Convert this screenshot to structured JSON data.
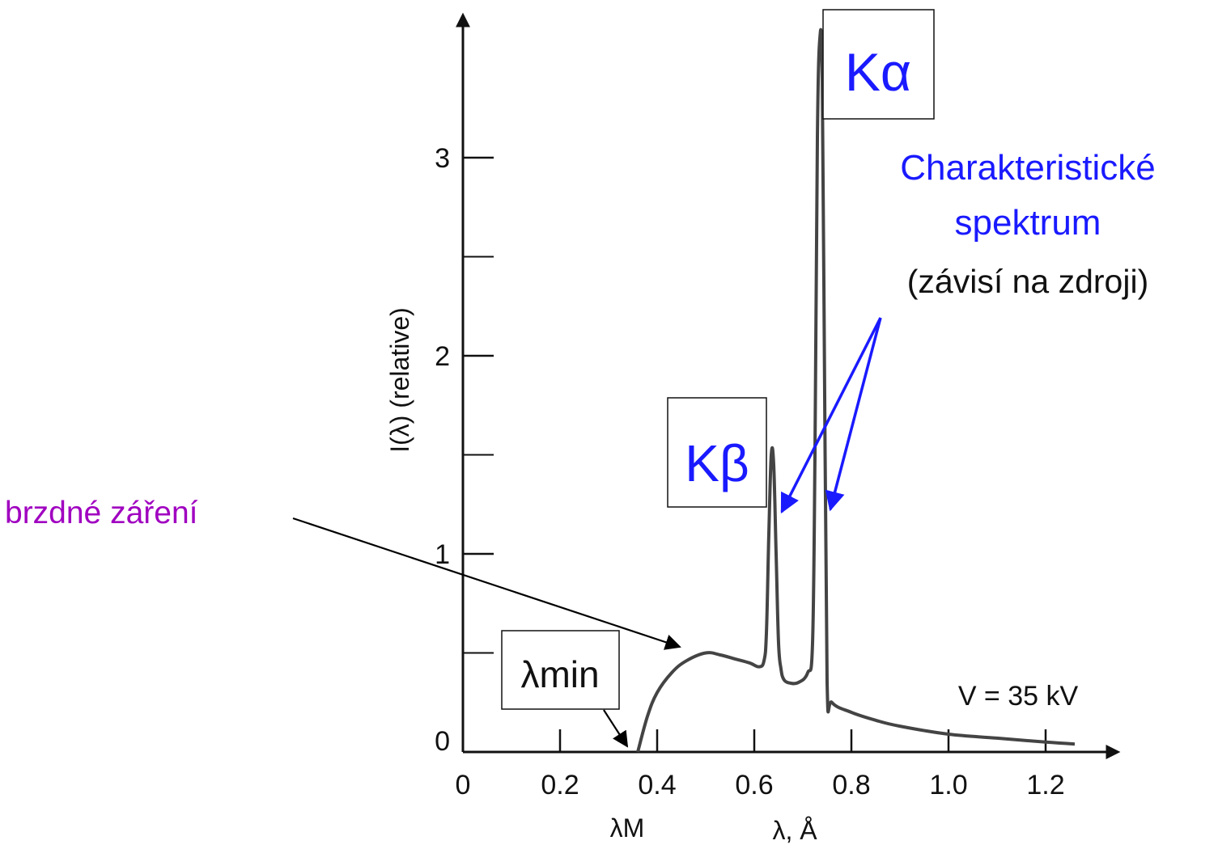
{
  "chart_data": {
    "type": "line",
    "title": "",
    "xlabel": "λ, Å",
    "ylabel": "I(λ) (relative)",
    "xlim": [
      0,
      1.3
    ],
    "ylim": [
      0,
      3.6
    ],
    "x_ticks": [
      "0",
      "0.2",
      "0.4",
      "0.6",
      "0.8",
      "1.0",
      "1.2"
    ],
    "y_ticks": [
      "0",
      "1",
      "2",
      "3"
    ],
    "x_tick_values": [
      0,
      0.2,
      0.4,
      0.6,
      0.8,
      1.0,
      1.2
    ],
    "y_tick_values": [
      0,
      1,
      2,
      3
    ],
    "y_minor_tick_values": [
      0.5,
      1.5,
      2.5
    ],
    "grid": false,
    "series": [
      {
        "x": [
          0.36,
          0.38,
          0.4,
          0.43,
          0.46,
          0.5,
          0.53,
          0.56,
          0.59,
          0.61,
          0.62,
          0.625,
          0.63,
          0.635,
          0.64,
          0.645,
          0.65,
          0.655,
          0.66,
          0.67,
          0.69,
          0.71,
          0.72,
          0.725,
          0.73,
          0.735,
          0.74,
          0.745,
          0.75,
          0.76,
          0.8,
          0.85,
          0.9,
          1.0,
          1.1,
          1.2,
          1.26
        ],
        "y": [
          0.0,
          0.18,
          0.3,
          0.4,
          0.46,
          0.5,
          0.49,
          0.47,
          0.45,
          0.43,
          0.46,
          0.6,
          1.1,
          1.5,
          1.45,
          1.0,
          0.55,
          0.42,
          0.37,
          0.35,
          0.35,
          0.4,
          0.55,
          1.5,
          3.1,
          3.6,
          3.4,
          1.8,
          0.35,
          0.25,
          0.2,
          0.16,
          0.13,
          0.09,
          0.07,
          0.05,
          0.04
        ]
      }
    ],
    "annotations": {
      "voltage": "V = 35 kV",
      "lambda_m": "λM",
      "lambda_min": "λmin",
      "k_alpha": "Kα",
      "k_beta": "Kβ",
      "characteristic_line1": "Charakteristické",
      "characteristic_line2": "spektrum",
      "characteristic_line3": "(závisí na zdroji)",
      "bremsstrahlung": "brzdné záření"
    }
  },
  "colors": {
    "axis": "#111111",
    "curve": "#444444",
    "annotation_blue": "#1a1aff",
    "annotation_purple": "#a000c0",
    "pointer_black": "#000000"
  }
}
